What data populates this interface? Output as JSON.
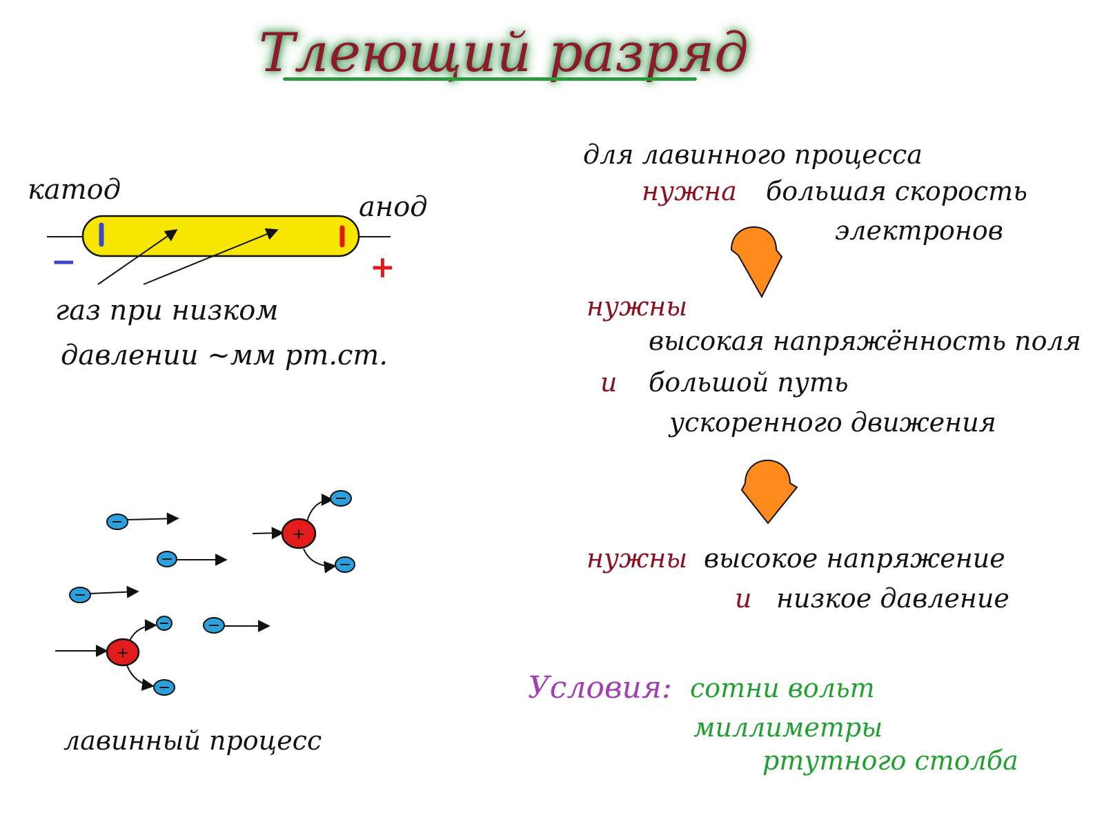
{
  "title": "Тлеющий разряд",
  "tube": {
    "cathode_label": "катод",
    "anode_label": "анод",
    "minus_sign": "−",
    "plus_sign": "+",
    "gas_line1": "газ при низком",
    "gas_line2": "давлении ~мм рт.ст."
  },
  "avalanche": {
    "ion_sign": "+",
    "caption": "лавинный процесс"
  },
  "flow": {
    "line1": "для лавинного процесса",
    "line2_needed": "нужна",
    "line2_rest": "большая скорость",
    "line3": "электронов",
    "line4_needed": "нужны",
    "line5": "высокая напряжённость поля",
    "line6_and": "и",
    "line6_rest": "большой путь",
    "line7": "ускоренного движения",
    "line8_needed": "нужны",
    "line8_rest": "высокое напряжение",
    "line9_and": "и",
    "line9_rest": "низкое давление"
  },
  "conditions": {
    "label": "Условия:",
    "line1": "сотни вольт",
    "line2": "миллиметры",
    "line3": "ртутного столба"
  },
  "colors": {
    "tube_fill": "#f7e600",
    "arrow_orange": "#ff8a1e",
    "electron": "#2aa0dc",
    "ion": "#e21b1b"
  }
}
